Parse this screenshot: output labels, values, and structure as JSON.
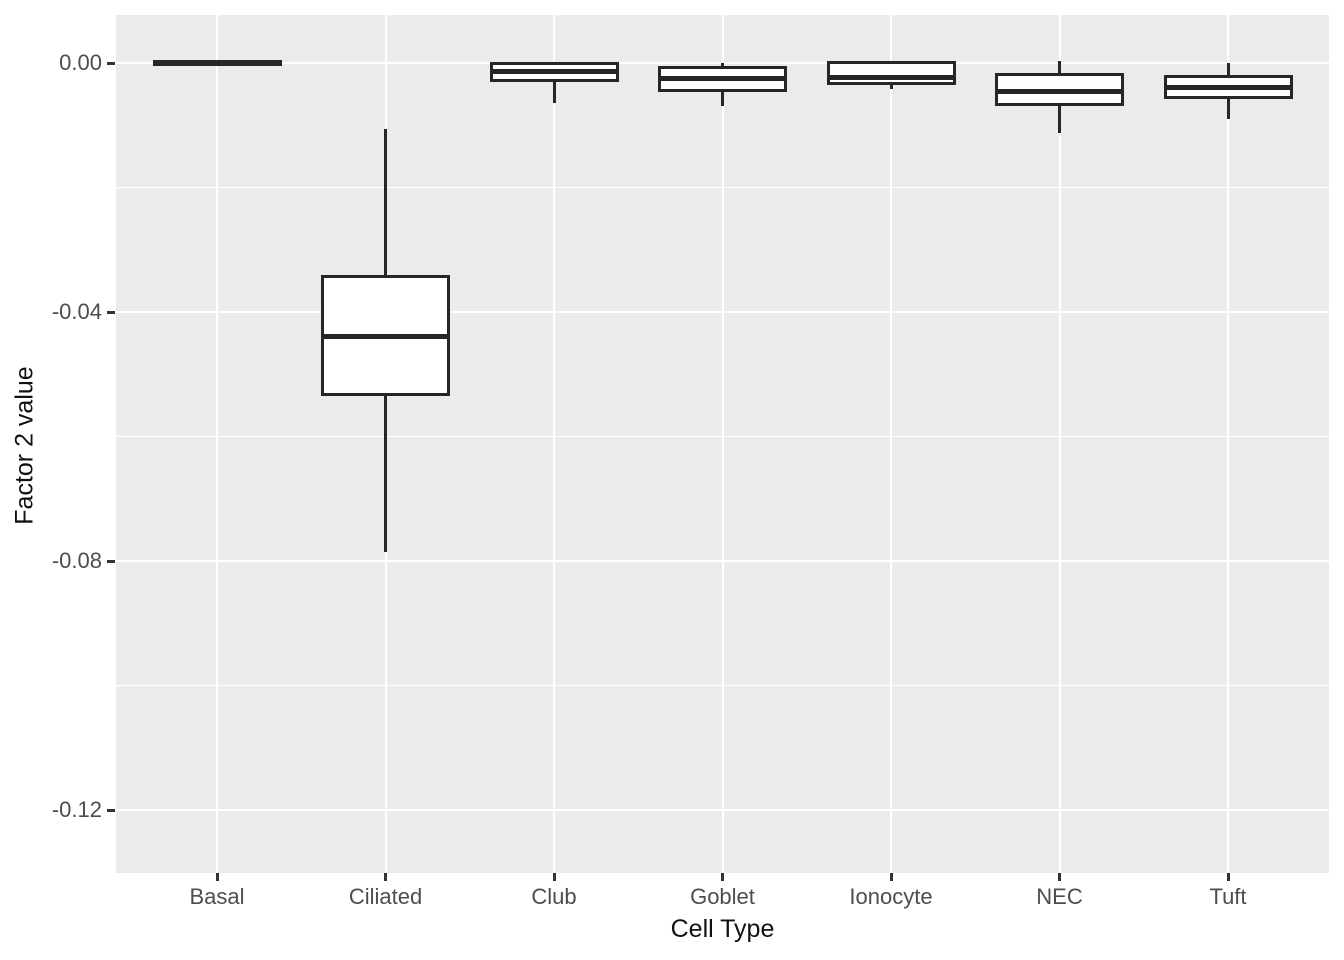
{
  "figure": {
    "background": "#FFFFFF",
    "panel_background": "#EBEBEB",
    "grid_color": "#FFFFFF",
    "box_stroke": "#262626",
    "box_fill": "#FFFFFF",
    "tick_color": "#333333",
    "tick_label_color": "#4D4D4D",
    "axis_title_color": "#111111"
  },
  "chart_data": {
    "type": "boxplot",
    "title": "",
    "xlabel": "Cell Type",
    "ylabel": "Factor 2 value",
    "categories": [
      "Basal",
      "Ciliated",
      "Club",
      "Goblet",
      "Ionocyte",
      "NEC",
      "Tuft"
    ],
    "y_tick_values": [
      0.0,
      -0.04,
      -0.08,
      -0.12
    ],
    "y_tick_labels": [
      "0.00",
      "-0.04",
      "-0.08",
      "-0.12"
    ],
    "y_minor_tick_values": [
      -0.02,
      -0.06,
      -0.1
    ],
    "ylim": [
      -0.13,
      0.008
    ],
    "grid": true,
    "legend": false,
    "series": [
      {
        "category": "Basal",
        "whisker_low": 0.0,
        "q1": 0.0,
        "median": 0.0,
        "q3": 0.0,
        "whisker_high": 0.0
      },
      {
        "category": "Ciliated",
        "whisker_low": -0.0785,
        "q1": -0.053,
        "median": -0.044,
        "q3": -0.0345,
        "whisker_high": -0.0106
      },
      {
        "category": "Club",
        "whisker_low": -0.0064,
        "q1": -0.0026,
        "median": -0.0014,
        "q3": -0.0003,
        "whisker_high": -0.0003
      },
      {
        "category": "Goblet",
        "whisker_low": -0.0069,
        "q1": -0.0041,
        "median": -0.0025,
        "q3": -0.001,
        "whisker_high": 0.0
      },
      {
        "category": "Ionocyte",
        "whisker_low": -0.0041,
        "q1": -0.003,
        "median": -0.0024,
        "q3": -0.0001,
        "whisker_high": -0.0001
      },
      {
        "category": "NEC",
        "whisker_low": -0.0113,
        "q1": -0.0064,
        "median": -0.0046,
        "q3": -0.0021,
        "whisker_high": 0.0003
      },
      {
        "category": "Tuft",
        "whisker_low": -0.009,
        "q1": -0.0053,
        "median": -0.0039,
        "q3": -0.0024,
        "whisker_high": 0.0
      }
    ]
  }
}
